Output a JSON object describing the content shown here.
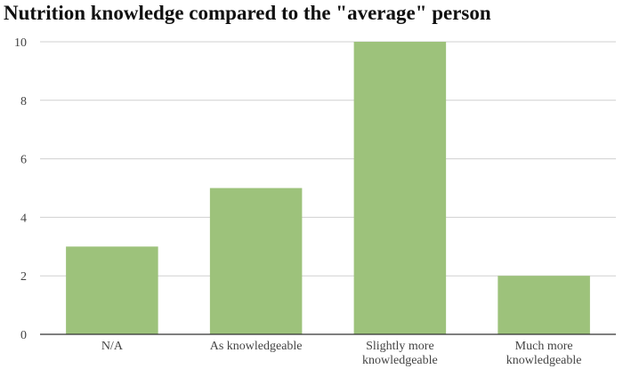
{
  "chart_data": {
    "type": "bar",
    "title": "Nutrition knowledge compared to the \"average\" person",
    "xlabel": "",
    "ylabel": "",
    "categories": [
      [
        "N/A"
      ],
      [
        "As knowledgeable"
      ],
      [
        "Slightly more",
        "knowledgeable"
      ],
      [
        "Much more",
        "knowledgeable"
      ]
    ],
    "values": [
      3,
      5,
      10,
      2
    ],
    "ylim": [
      0,
      10
    ],
    "yticks": [
      0,
      2,
      4,
      6,
      8,
      10
    ],
    "grid": true,
    "legend": "none",
    "colors": {
      "bar": "#9dc27b",
      "grid": "#d0d0d0",
      "axis": "#333333",
      "text": "#444444"
    }
  }
}
